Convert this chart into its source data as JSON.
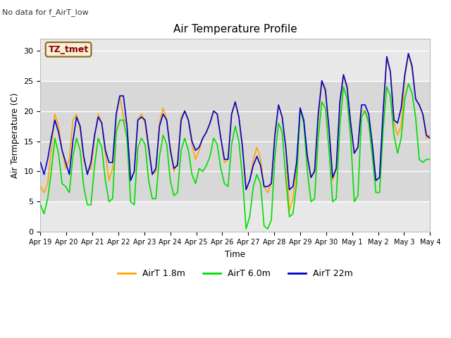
{
  "title": "Air Temperature Profile",
  "ylabel": "Air Termperature (C)",
  "xlabel": "Time",
  "top_label": "No data for f_AirT_low",
  "annotation_text": "TZ_tmet",
  "annotation_color": "#8B0000",
  "annotation_bg": "#f5eed8",
  "ylim": [
    0,
    32
  ],
  "yticks": [
    0,
    5,
    10,
    15,
    20,
    25,
    30
  ],
  "bg_color": "#e8e8e8",
  "bg_band_low": 5,
  "bg_band_high": 25,
  "band_color": "#d8d8d8",
  "line_colors": {
    "airt_18": "#FFA500",
    "airt_60": "#00DD00",
    "airt_22": "#0000CC"
  },
  "legend_labels": [
    "AirT 1.8m",
    "AirT 6.0m",
    "AirT 22m"
  ],
  "xticklabels": [
    "Apr 19",
    "Apr 20",
    "Apr 21",
    "Apr 22",
    "Apr 23",
    "Apr 24",
    "Apr 25",
    "Apr 26",
    "Apr 27",
    "Apr 28",
    "Apr 29",
    "Apr 30",
    "May 1",
    "May 2",
    "May 3",
    "May 4"
  ],
  "num_days": 15,
  "airt_18": [
    7.5,
    6.5,
    8.0,
    13.5,
    19.5,
    17.5,
    13.5,
    10.5,
    12.0,
    18.5,
    19.5,
    17.0,
    12.0,
    10.0,
    10.5,
    15.5,
    19.5,
    18.0,
    13.0,
    8.5,
    10.5,
    19.0,
    22.5,
    19.0,
    17.5,
    8.5,
    10.0,
    18.5,
    19.5,
    18.0,
    13.5,
    9.5,
    10.0,
    18.0,
    20.5,
    18.5,
    14.0,
    10.0,
    11.5,
    19.0,
    20.0,
    18.5,
    14.5,
    12.0,
    13.5,
    15.5,
    16.5,
    18.0,
    20.0,
    19.5,
    15.5,
    11.5,
    12.0,
    19.5,
    21.5,
    19.0,
    14.5,
    7.0,
    8.5,
    12.0,
    14.0,
    12.0,
    7.5,
    6.5,
    8.0,
    16.5,
    21.0,
    19.0,
    14.0,
    3.5,
    5.5,
    10.5,
    20.5,
    18.0,
    12.5,
    9.0,
    10.5,
    18.5,
    25.0,
    23.0,
    17.0,
    8.5,
    10.5,
    21.0,
    26.0,
    23.5,
    17.5,
    13.0,
    14.0,
    20.0,
    20.0,
    18.5,
    13.5,
    8.5,
    9.0,
    19.5,
    28.5,
    26.5,
    18.0,
    16.0,
    17.5,
    25.5,
    29.5,
    27.0,
    22.0,
    21.0,
    19.5,
    15.5,
    16.0
  ],
  "airt_60": [
    4.5,
    3.0,
    5.5,
    10.0,
    15.5,
    13.0,
    8.0,
    7.5,
    6.5,
    12.5,
    15.5,
    13.5,
    7.5,
    4.5,
    4.5,
    11.0,
    15.5,
    14.0,
    8.5,
    5.0,
    5.5,
    16.5,
    18.5,
    18.5,
    15.5,
    5.0,
    4.5,
    14.0,
    15.5,
    14.5,
    8.5,
    5.5,
    5.5,
    12.5,
    16.0,
    14.5,
    8.5,
    6.0,
    6.5,
    13.5,
    15.5,
    13.5,
    9.5,
    8.0,
    10.5,
    10.0,
    11.0,
    12.5,
    15.5,
    14.5,
    10.5,
    8.0,
    7.5,
    14.5,
    17.5,
    15.0,
    9.0,
    0.5,
    2.5,
    7.5,
    9.5,
    8.0,
    1.0,
    0.5,
    2.0,
    12.5,
    18.0,
    16.5,
    9.0,
    2.5,
    3.0,
    8.0,
    20.5,
    18.0,
    10.0,
    5.0,
    5.5,
    15.5,
    21.5,
    20.5,
    13.5,
    5.0,
    5.5,
    17.5,
    24.0,
    22.0,
    15.5,
    5.0,
    6.0,
    19.0,
    20.0,
    18.0,
    12.5,
    6.5,
    6.5,
    17.0,
    24.0,
    22.5,
    16.0,
    13.0,
    15.5,
    22.0,
    24.5,
    23.0,
    19.0,
    12.0,
    11.5,
    12.0,
    12.0
  ],
  "airt_22": [
    11.5,
    9.5,
    12.0,
    15.5,
    18.5,
    16.5,
    13.5,
    11.5,
    9.5,
    15.0,
    19.0,
    17.5,
    12.5,
    9.5,
    11.5,
    16.0,
    19.0,
    18.0,
    13.5,
    11.5,
    11.5,
    19.5,
    22.5,
    22.5,
    17.5,
    8.5,
    10.0,
    18.5,
    19.0,
    18.5,
    14.0,
    9.5,
    10.5,
    17.5,
    19.5,
    18.5,
    13.5,
    10.5,
    11.0,
    18.5,
    20.0,
    18.5,
    15.0,
    13.5,
    14.0,
    15.5,
    16.5,
    18.0,
    20.0,
    19.5,
    15.5,
    12.0,
    12.0,
    19.5,
    21.5,
    19.0,
    14.0,
    7.0,
    8.5,
    11.0,
    12.5,
    11.0,
    7.5,
    7.5,
    8.0,
    16.0,
    21.0,
    19.0,
    14.0,
    7.0,
    7.5,
    11.5,
    20.5,
    18.5,
    12.5,
    9.0,
    10.0,
    19.5,
    25.0,
    23.5,
    17.0,
    9.0,
    10.5,
    21.5,
    26.0,
    24.0,
    18.0,
    13.0,
    14.0,
    21.0,
    21.0,
    19.5,
    14.5,
    8.5,
    9.0,
    20.0,
    29.0,
    26.5,
    18.5,
    18.0,
    20.5,
    26.0,
    29.5,
    27.5,
    22.0,
    21.0,
    19.5,
    16.0,
    15.5
  ]
}
